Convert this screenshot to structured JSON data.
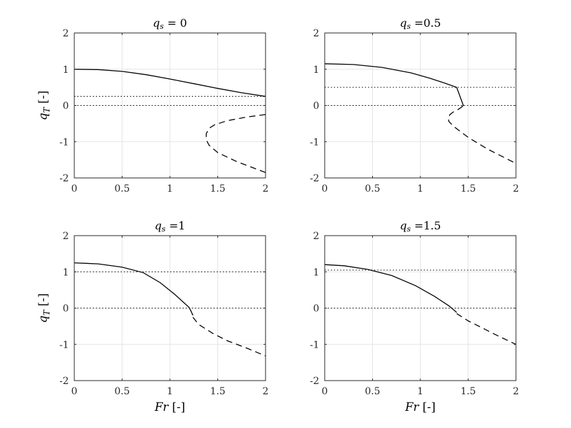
{
  "chart_data": [
    {
      "type": "line",
      "title_symbol": "q",
      "title_sub": "s",
      "title_value": " = 0",
      "xlabel_symbol": "",
      "xlabel_unit": "",
      "ylabel_symbol": "q",
      "ylabel_sub": "T",
      "ylabel_unit": "[-]",
      "xlim": [
        0,
        2
      ],
      "ylim": [
        -2,
        2
      ],
      "xticks": [
        "0",
        "0.5",
        "1",
        "1.5",
        "2"
      ],
      "yticks": [
        "-2",
        "-1",
        "0",
        "1",
        "2"
      ],
      "grid": true,
      "ref_lines": [
        0,
        0.25
      ],
      "series": [
        {
          "style": "solid",
          "x": [
            0,
            0.25,
            0.5,
            0.75,
            1.0,
            1.25,
            1.5,
            1.75,
            2.0
          ],
          "y": [
            1.0,
            0.99,
            0.94,
            0.85,
            0.73,
            0.6,
            0.47,
            0.35,
            0.25
          ]
        },
        {
          "style": "dashed",
          "x": [
            2.0,
            1.8,
            1.6,
            1.47,
            1.41,
            1.38,
            1.38,
            1.41,
            1.5,
            1.7,
            2.0
          ],
          "y": [
            -0.25,
            -0.32,
            -0.42,
            -0.53,
            -0.63,
            -0.78,
            -0.95,
            -1.1,
            -1.3,
            -1.55,
            -1.85
          ]
        }
      ]
    },
    {
      "type": "line",
      "title_symbol": "q",
      "title_sub": "s",
      "title_value": " =0.5",
      "xlabel_symbol": "",
      "xlabel_unit": "",
      "ylabel_symbol": "",
      "ylabel_sub": "",
      "ylabel_unit": "",
      "xlim": [
        0,
        2
      ],
      "ylim": [
        -2,
        2
      ],
      "xticks": [
        "0",
        "0.5",
        "1",
        "1.5",
        "2"
      ],
      "yticks": [
        "-2",
        "-1",
        "0",
        "1",
        "2"
      ],
      "grid": true,
      "ref_lines": [
        0,
        0.5
      ],
      "series": [
        {
          "style": "solid",
          "x": [
            0,
            0.3,
            0.6,
            0.9,
            1.1,
            1.25,
            1.38,
            1.45,
            1.43,
            1.39
          ],
          "y": [
            1.15,
            1.13,
            1.05,
            0.9,
            0.75,
            0.62,
            0.5,
            0.0,
            -0.05,
            -0.12
          ]
        },
        {
          "style": "dashed",
          "x": [
            1.35,
            1.31,
            1.29,
            1.3,
            1.36,
            1.5,
            1.7,
            2.0
          ],
          "y": [
            -0.17,
            -0.25,
            -0.35,
            -0.45,
            -0.6,
            -0.88,
            -1.2,
            -1.6
          ]
        }
      ]
    },
    {
      "type": "line",
      "title_symbol": "q",
      "title_sub": "s",
      "title_value": " =1",
      "xlabel_symbol": "Fr",
      "xlabel_unit": "[-]",
      "ylabel_symbol": "q",
      "ylabel_sub": "T",
      "ylabel_unit": "[-]",
      "xlim": [
        0,
        2
      ],
      "ylim": [
        -2,
        2
      ],
      "xticks": [
        "0",
        "0.5",
        "1",
        "1.5",
        "2"
      ],
      "yticks": [
        "-2",
        "-1",
        "0",
        "1",
        "2"
      ],
      "grid": true,
      "ref_lines": [
        0,
        1
      ],
      "series": [
        {
          "style": "solid",
          "x": [
            0,
            0.25,
            0.5,
            0.72,
            0.9,
            1.05,
            1.2,
            1.22,
            1.24
          ],
          "y": [
            1.25,
            1.22,
            1.13,
            0.98,
            0.7,
            0.38,
            0.02,
            -0.08,
            -0.2
          ]
        },
        {
          "style": "dashed",
          "x": [
            1.24,
            1.3,
            1.45,
            1.6,
            1.8,
            2.0
          ],
          "y": [
            -0.25,
            -0.45,
            -0.7,
            -0.9,
            -1.1,
            -1.32
          ]
        }
      ]
    },
    {
      "type": "line",
      "title_symbol": "q",
      "title_sub": "s",
      "title_value": " =1.5",
      "xlabel_symbol": "Fr",
      "xlabel_unit": "[-]",
      "ylabel_symbol": "",
      "ylabel_sub": "",
      "ylabel_unit": "",
      "xlim": [
        0,
        2
      ],
      "ylim": [
        -2,
        2
      ],
      "xticks": [
        "0",
        "0.5",
        "1",
        "1.5",
        "2"
      ],
      "yticks": [
        "-2",
        "-1",
        "0",
        "1",
        "2"
      ],
      "grid": true,
      "ref_lines": [
        0,
        1.05
      ],
      "series": [
        {
          "style": "solid",
          "x": [
            0,
            0.2,
            0.45,
            0.7,
            0.95,
            1.15,
            1.3,
            1.38
          ],
          "y": [
            1.2,
            1.17,
            1.07,
            0.9,
            0.62,
            0.32,
            0.06,
            -0.12
          ]
        },
        {
          "style": "dashed",
          "x": [
            1.38,
            1.5,
            1.65,
            1.8,
            2.0
          ],
          "y": [
            -0.15,
            -0.35,
            -0.55,
            -0.75,
            -1.0
          ]
        }
      ]
    }
  ]
}
